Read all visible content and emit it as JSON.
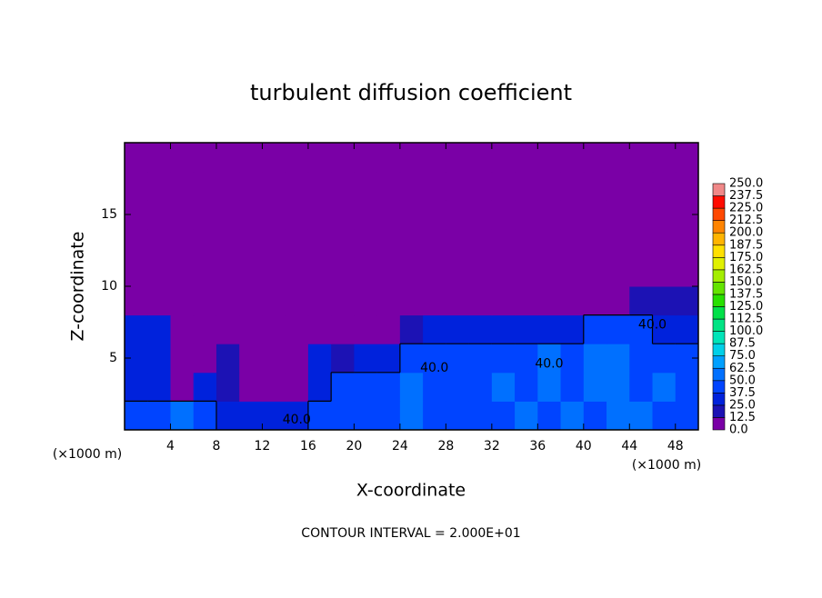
{
  "chart_data": {
    "type": "heatmap",
    "title": "turbulent diffusion coefficient",
    "xlabel": "X-coordinate",
    "ylabel": "Z-coordinate",
    "x_unit_labels": [
      "(×1000 m)",
      "(×1000 m)"
    ],
    "footnote": "CONTOUR INTERVAL = 2.000E+01",
    "xlim": [
      0,
      50
    ],
    "xticks": [
      4,
      8,
      12,
      16,
      20,
      24,
      28,
      32,
      36,
      40,
      44,
      48
    ],
    "ylim": [
      0,
      20
    ],
    "yticks": [
      5,
      10,
      15
    ],
    "contour_level": {
      "value": 40,
      "label": "40.0"
    },
    "z": [
      [
        40,
        45,
        50,
        45,
        30,
        30,
        35,
        30,
        45,
        45,
        40,
        45,
        50,
        45,
        45,
        40,
        45,
        50,
        45,
        55,
        45,
        55,
        50,
        45,
        45
      ],
      [
        35,
        30,
        10,
        30,
        15,
        10,
        5,
        10,
        30,
        40,
        45,
        45,
        50,
        40,
        45,
        45,
        50,
        45,
        55,
        45,
        50,
        60,
        45,
        50,
        45
      ],
      [
        30,
        30,
        10,
        8,
        20,
        10,
        5,
        5,
        35,
        20,
        30,
        35,
        40,
        45,
        40,
        40,
        45,
        45,
        50,
        45,
        55,
        60,
        45,
        40,
        40
      ],
      [
        25,
        25,
        5,
        5,
        5,
        5,
        5,
        5,
        5,
        5,
        5,
        5,
        20,
        25,
        30,
        30,
        30,
        35,
        35,
        35,
        45,
        45,
        40,
        35,
        35
      ],
      [
        5,
        5,
        5,
        5,
        5,
        5,
        5,
        5,
        5,
        5,
        5,
        5,
        5,
        5,
        5,
        5,
        5,
        5,
        5,
        5,
        5,
        5,
        15,
        15,
        15
      ],
      [
        3,
        3,
        3,
        3,
        3,
        3,
        3,
        3,
        3,
        3,
        3,
        3,
        3,
        3,
        3,
        3,
        3,
        3,
        3,
        3,
        3,
        3,
        3,
        3,
        3
      ],
      [
        3,
        3,
        3,
        3,
        3,
        3,
        3,
        3,
        3,
        3,
        3,
        3,
        3,
        3,
        3,
        3,
        3,
        3,
        3,
        3,
        3,
        3,
        3,
        3,
        3
      ],
      [
        3,
        3,
        3,
        3,
        3,
        3,
        3,
        3,
        3,
        3,
        3,
        3,
        3,
        3,
        3,
        3,
        3,
        3,
        3,
        3,
        3,
        3,
        3,
        3,
        3
      ],
      [
        3,
        3,
        3,
        3,
        3,
        3,
        3,
        3,
        3,
        3,
        3,
        3,
        3,
        3,
        3,
        3,
        3,
        3,
        3,
        3,
        3,
        3,
        3,
        3,
        3
      ],
      [
        3,
        3,
        3,
        3,
        3,
        3,
        3,
        3,
        3,
        3,
        3,
        3,
        3,
        3,
        3,
        3,
        3,
        3,
        3,
        3,
        3,
        3,
        3,
        3,
        3
      ]
    ],
    "colorbar": {
      "levels": [
        {
          "value": 0,
          "label": "0.0"
        },
        12.5,
        {
          "value": 25,
          "label": "25.0"
        },
        37.5,
        {
          "value": 50,
          "label": "50.0"
        },
        62.5,
        {
          "value": 75,
          "label": "75.0"
        },
        87.5,
        {
          "value": 100,
          "label": "100.0"
        },
        112.5,
        {
          "value": 125,
          "label": "125.0"
        },
        137.5,
        {
          "value": 150,
          "label": "150.0"
        },
        162.5,
        {
          "value": 175,
          "label": "175.0"
        },
        187.5,
        {
          "value": 200,
          "label": "200.0"
        },
        212.5,
        {
          "value": 225,
          "label": "225.0"
        },
        237.5,
        {
          "value": 250,
          "label": "250.0"
        }
      ],
      "colors": [
        "#7a00a6",
        "#1c12b4",
        "#0022dc",
        "#0044ff",
        "#0070ff",
        "#00a0ff",
        "#00d0e8",
        "#00e4b8",
        "#00e484",
        "#00e048",
        "#28e000",
        "#64e400",
        "#a4ee00",
        "#e0f000",
        "#ffe000",
        "#ffb400",
        "#ff8400",
        "#ff4800",
        "#ff0c00",
        "#f08888"
      ]
    }
  }
}
